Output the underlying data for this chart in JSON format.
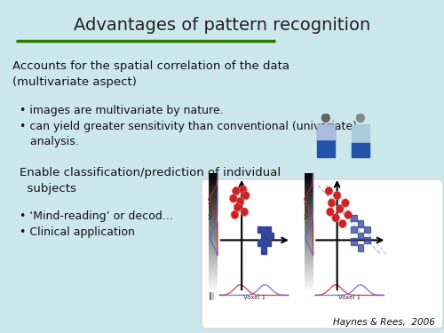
{
  "title": "Advantages of pattern recognition",
  "title_fontsize": 14,
  "title_color": "#222222",
  "underline_color": "#2d7a00",
  "background_color": "#cce8ed",
  "body_text_color": "#111111",
  "body_fontsize": 9.5,
  "bullet_fontsize": 9.0,
  "section1_heading": "Accounts for the spatial correlation of the data\n(multivariate aspect)",
  "section1_bullets": [
    "images are multivariate by nature.",
    "can yield greater sensitivity than conventional (univariate)\n   analysis."
  ],
  "section2_heading": "Enable classification/prediction of individual\n  subjects",
  "section2_bullets": [
    "‘Mind-reading’ or decod…",
    "Clinical application"
  ],
  "citation": "Haynes & Rees,  2006"
}
